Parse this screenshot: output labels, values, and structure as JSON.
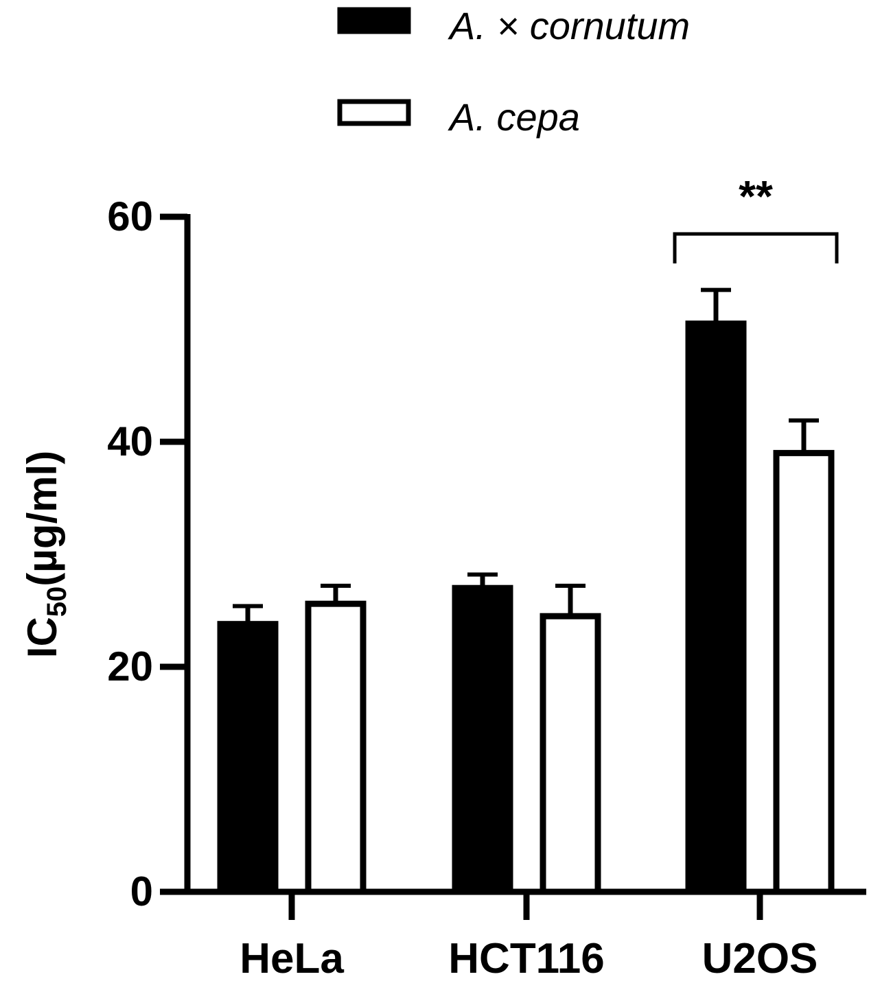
{
  "chart_data": {
    "type": "bar",
    "ylabel_main": "IC",
    "ylabel_sub": "50",
    "ylabel_rest": "(µg/ml)",
    "ylim": [
      0,
      60
    ],
    "yticks": [
      0,
      20,
      40,
      60
    ],
    "categories": [
      "HeLa",
      "HCT116",
      "U2OS"
    ],
    "series": [
      {
        "name": "A. × cornutum",
        "fill": "#000000",
        "values": [
          23.8,
          27.0,
          50.5
        ],
        "errors": [
          1.6,
          1.2,
          3.0
        ]
      },
      {
        "name": "A. cepa",
        "fill": "#ffffff",
        "values": [
          25.6,
          24.5,
          39.0
        ],
        "errors": [
          1.6,
          2.7,
          2.9
        ]
      }
    ],
    "significance": [
      {
        "category": "U2OS",
        "label": "**"
      }
    ],
    "legend_position": "top"
  }
}
